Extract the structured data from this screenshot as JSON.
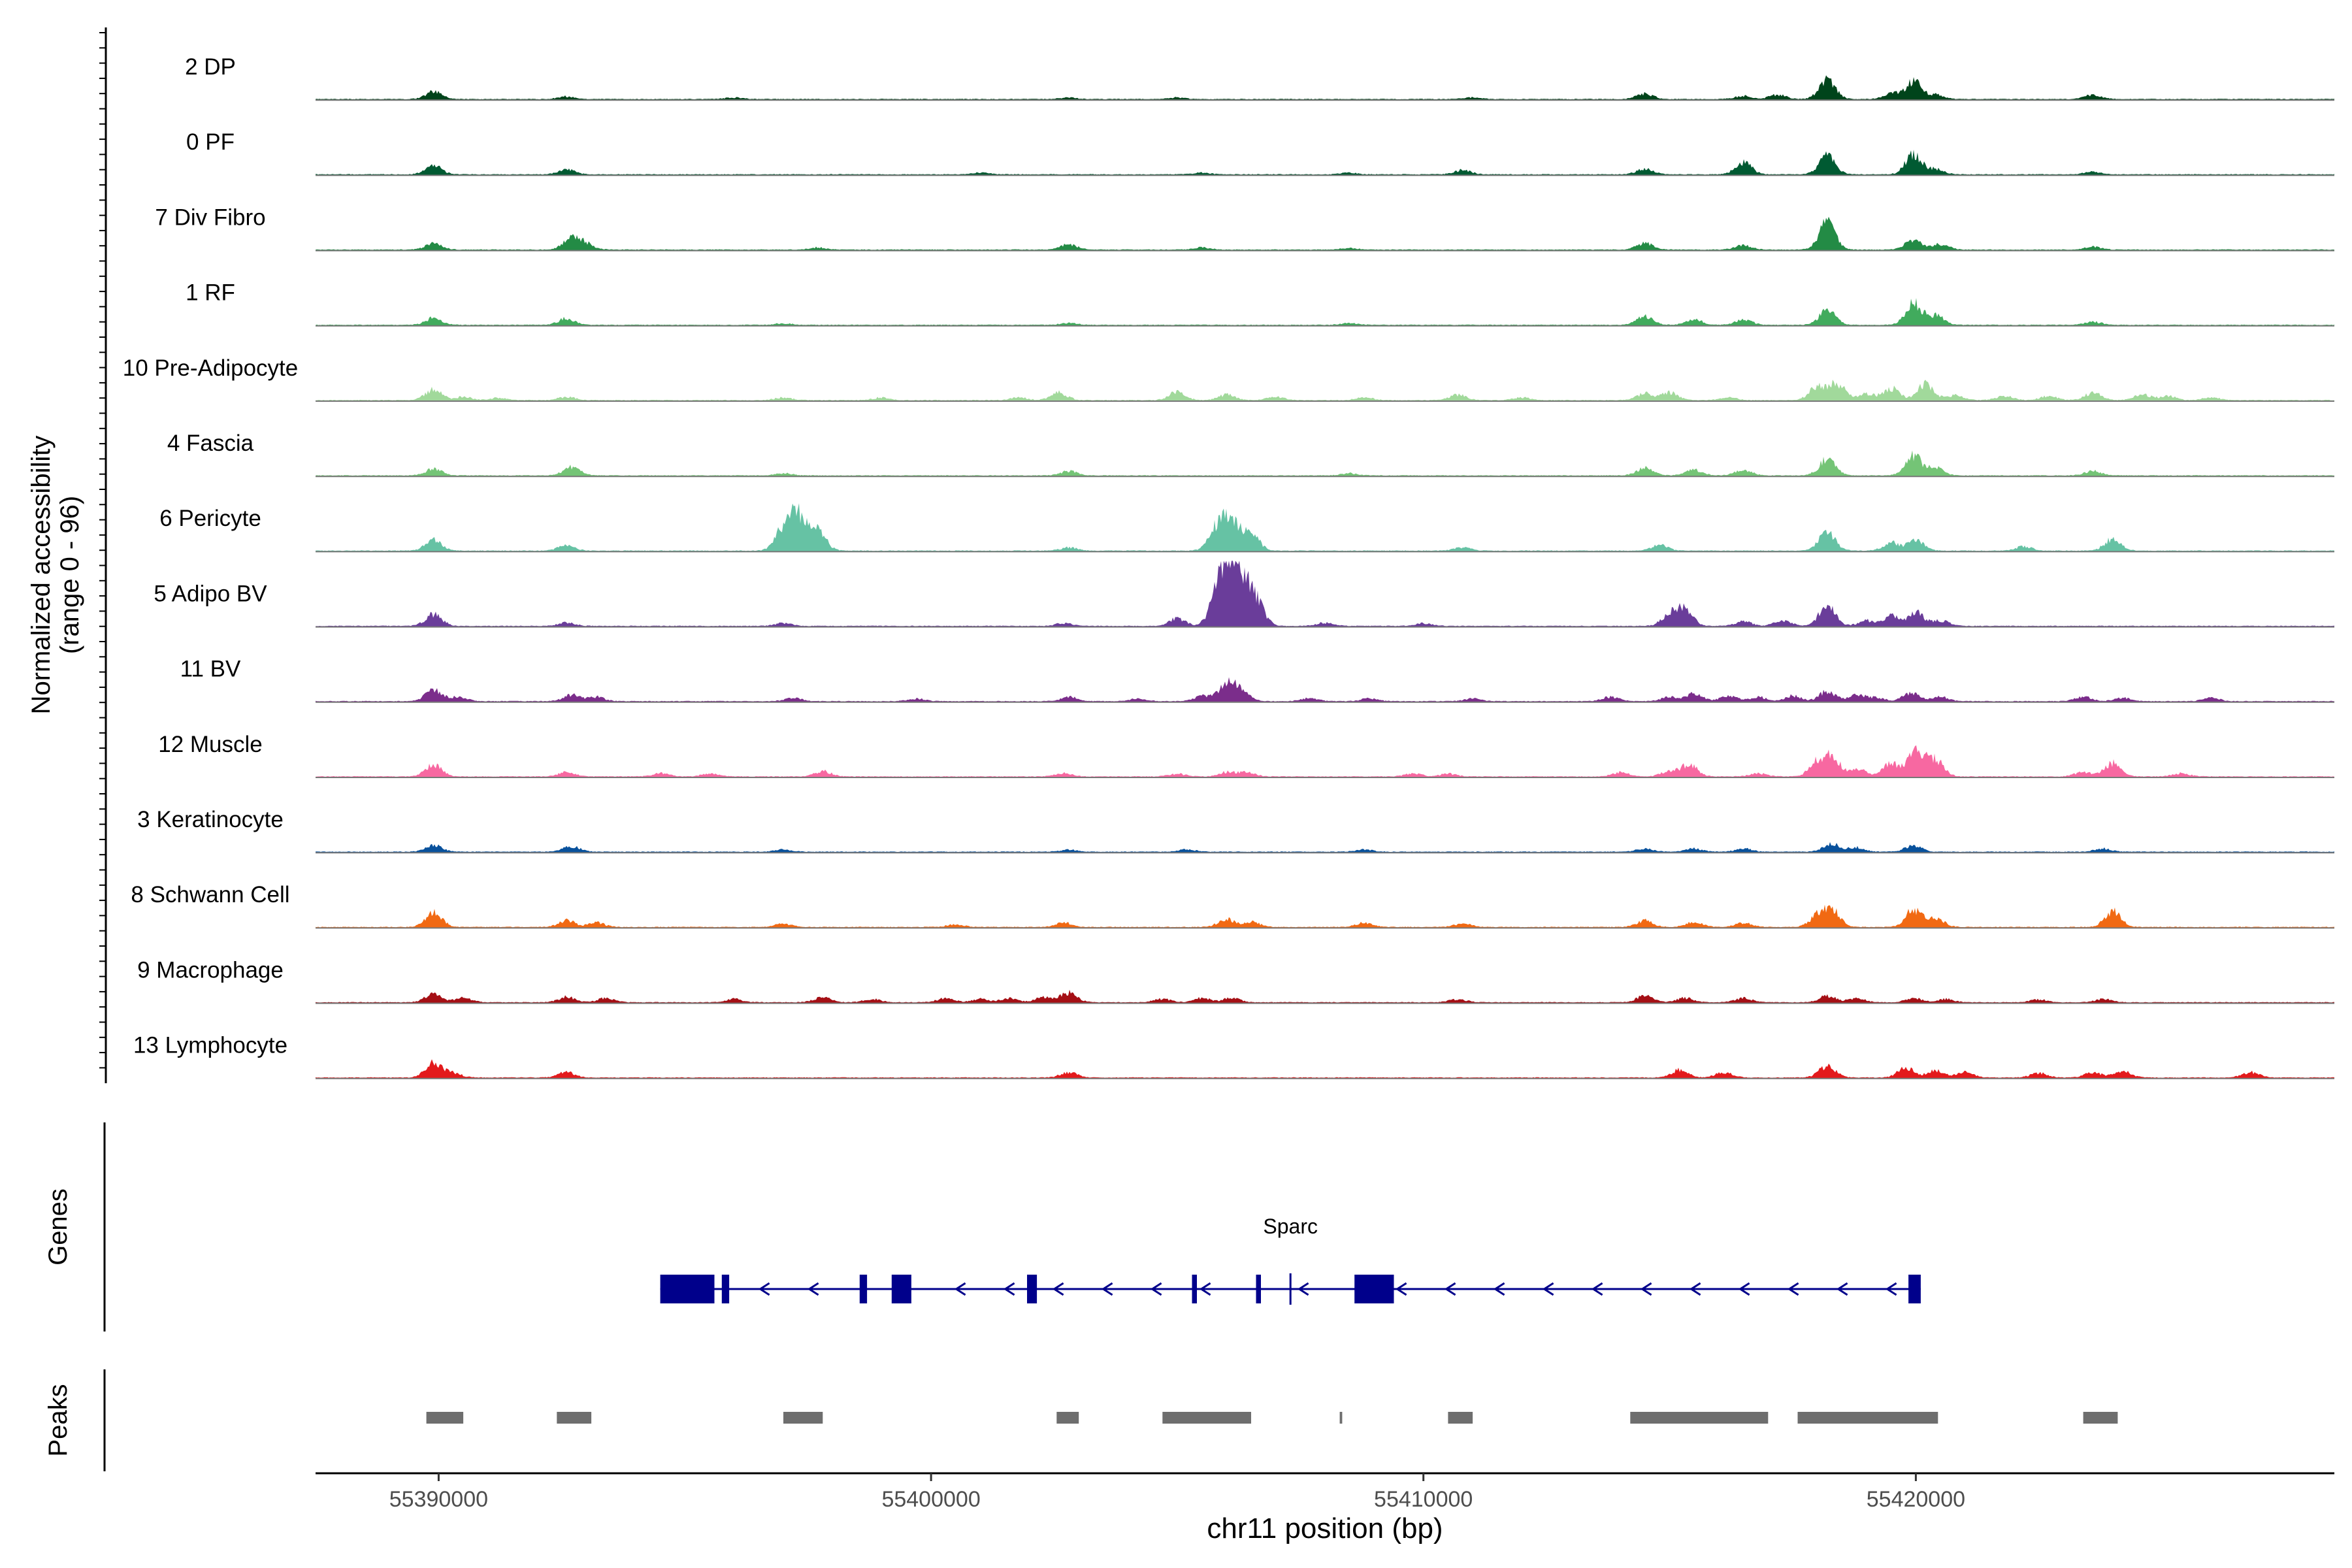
{
  "chart_data": {
    "type": "area",
    "title": "",
    "chromosome": "chr11",
    "xlabel": "chr11 position (bp)",
    "xlim": [
      55387500,
      55428500
    ],
    "x_ticks": [
      55390000,
      55400000,
      55410000,
      55420000
    ],
    "x_tick_labels": [
      "55390000",
      "55400000",
      "55410000",
      "55420000"
    ],
    "ylabel_line1": "Normalized accessibility",
    "ylabel_line2": "(range 0 - 96)",
    "ylim": [
      0,
      96
    ],
    "peak_base": 2,
    "series": [
      {
        "name": "2 DP",
        "color": "#00441b",
        "peaks": [
          [
            55389900,
            14
          ],
          [
            55392600,
            5
          ],
          [
            55396000,
            3
          ],
          [
            55402800,
            3
          ],
          [
            55405000,
            3
          ],
          [
            55411000,
            3
          ],
          [
            55414500,
            10
          ],
          [
            55416500,
            6
          ],
          [
            55417200,
            8
          ],
          [
            55418200,
            35
          ],
          [
            55419500,
            10
          ],
          [
            55419950,
            32
          ],
          [
            55420400,
            8
          ],
          [
            55423600,
            8
          ]
        ]
      },
      {
        "name": "0 PF",
        "color": "#005a32",
        "peaks": [
          [
            55389900,
            16
          ],
          [
            55392600,
            9
          ],
          [
            55401000,
            3
          ],
          [
            55405500,
            3
          ],
          [
            55408500,
            3
          ],
          [
            55410800,
            8
          ],
          [
            55414500,
            10
          ],
          [
            55416500,
            22
          ],
          [
            55418200,
            35
          ],
          [
            55419950,
            36
          ],
          [
            55420400,
            10
          ],
          [
            55423600,
            5
          ]
        ]
      },
      {
        "name": "7 Div Fibro",
        "color": "#238b45",
        "peaks": [
          [
            55389900,
            12
          ],
          [
            55392700,
            22
          ],
          [
            55393000,
            10
          ],
          [
            55397700,
            4
          ],
          [
            55402800,
            10
          ],
          [
            55405500,
            4
          ],
          [
            55408500,
            3
          ],
          [
            55414500,
            12
          ],
          [
            55416500,
            8
          ],
          [
            55418200,
            50
          ],
          [
            55419950,
            18
          ],
          [
            55420500,
            10
          ],
          [
            55423600,
            5
          ]
        ]
      },
      {
        "name": "1 RF",
        "color": "#41ab5d",
        "peaks": [
          [
            55389900,
            13
          ],
          [
            55392600,
            12
          ],
          [
            55397000,
            3
          ],
          [
            55402800,
            4
          ],
          [
            55408500,
            3
          ],
          [
            55414500,
            16
          ],
          [
            55415500,
            10
          ],
          [
            55416500,
            10
          ],
          [
            55418200,
            27
          ],
          [
            55419950,
            40
          ],
          [
            55420400,
            18
          ],
          [
            55423600,
            6
          ]
        ]
      },
      {
        "name": "10 Pre-Adipocyte",
        "color": "#a1d99b",
        "peaks": [
          [
            55389900,
            20
          ],
          [
            55390500,
            6
          ],
          [
            55391200,
            4
          ],
          [
            55392600,
            6
          ],
          [
            55397000,
            5
          ],
          [
            55399000,
            5
          ],
          [
            55401800,
            5
          ],
          [
            55402600,
            14
          ],
          [
            55405000,
            15
          ],
          [
            55406000,
            10
          ],
          [
            55407000,
            6
          ],
          [
            55408800,
            5
          ],
          [
            55410700,
            10
          ],
          [
            55412000,
            5
          ],
          [
            55414500,
            12
          ],
          [
            55415000,
            14
          ],
          [
            55416200,
            5
          ],
          [
            55418000,
            25
          ],
          [
            55418400,
            30
          ],
          [
            55419000,
            12
          ],
          [
            55419500,
            22
          ],
          [
            55420200,
            30
          ],
          [
            55420800,
            10
          ],
          [
            55421800,
            8
          ],
          [
            55422700,
            8
          ],
          [
            55423600,
            14
          ],
          [
            55424600,
            10
          ],
          [
            55425100,
            8
          ],
          [
            55426000,
            5
          ]
        ]
      },
      {
        "name": "4 Fascia",
        "color": "#74c476",
        "peaks": [
          [
            55389900,
            12
          ],
          [
            55392700,
            16
          ],
          [
            55397000,
            4
          ],
          [
            55402800,
            8
          ],
          [
            55408500,
            4
          ],
          [
            55414500,
            14
          ],
          [
            55415500,
            10
          ],
          [
            55416500,
            10
          ],
          [
            55418200,
            30
          ],
          [
            55419950,
            36
          ],
          [
            55420400,
            14
          ],
          [
            55423600,
            8
          ]
        ]
      },
      {
        "name": "6 Pericyte",
        "color": "#66c2a4",
        "peaks": [
          [
            55389900,
            20
          ],
          [
            55392600,
            10
          ],
          [
            55397000,
            40
          ],
          [
            55397300,
            62
          ],
          [
            55397700,
            35
          ],
          [
            55402800,
            6
          ],
          [
            55405800,
            42
          ],
          [
            55406100,
            60
          ],
          [
            55406500,
            30
          ],
          [
            55410800,
            6
          ],
          [
            55414800,
            10
          ],
          [
            55418200,
            36
          ],
          [
            55419500,
            15
          ],
          [
            55420000,
            18
          ],
          [
            55422200,
            8
          ],
          [
            55424000,
            22
          ]
        ]
      },
      {
        "name": "5 Adipo BV",
        "color": "#6a3d9a",
        "peaks": [
          [
            55389900,
            22
          ],
          [
            55392600,
            6
          ],
          [
            55397000,
            5
          ],
          [
            55402700,
            5
          ],
          [
            55405000,
            14
          ],
          [
            55405800,
            40
          ],
          [
            55406000,
            95
          ],
          [
            55406300,
            75
          ],
          [
            55406600,
            45
          ],
          [
            55408000,
            6
          ],
          [
            55410000,
            5
          ],
          [
            55415000,
            20
          ],
          [
            55415300,
            30
          ],
          [
            55416500,
            8
          ],
          [
            55417300,
            10
          ],
          [
            55418200,
            38
          ],
          [
            55419000,
            10
          ],
          [
            55419500,
            18
          ],
          [
            55420000,
            25
          ],
          [
            55420500,
            10
          ]
        ]
      },
      {
        "name": "11 BV",
        "color": "#7b2d8b",
        "peaks": [
          [
            55389900,
            22
          ],
          [
            55390400,
            8
          ],
          [
            55392700,
            12
          ],
          [
            55393200,
            8
          ],
          [
            55397200,
            6
          ],
          [
            55399700,
            5
          ],
          [
            55402800,
            8
          ],
          [
            55404200,
            5
          ],
          [
            55405500,
            10
          ],
          [
            55406000,
            30
          ],
          [
            55406300,
            20
          ],
          [
            55407700,
            6
          ],
          [
            55408900,
            5
          ],
          [
            55411000,
            5
          ],
          [
            55413800,
            8
          ],
          [
            55415000,
            8
          ],
          [
            55415500,
            15
          ],
          [
            55416200,
            10
          ],
          [
            55416800,
            8
          ],
          [
            55417500,
            10
          ],
          [
            55418200,
            18
          ],
          [
            55418800,
            12
          ],
          [
            55419200,
            6
          ],
          [
            55419900,
            15
          ],
          [
            55420500,
            8
          ],
          [
            55423400,
            8
          ],
          [
            55424200,
            6
          ],
          [
            55426000,
            6
          ]
        ]
      },
      {
        "name": "12 Muscle",
        "color": "#f768a1",
        "peaks": [
          [
            55389900,
            22
          ],
          [
            55392600,
            8
          ],
          [
            55394500,
            6
          ],
          [
            55395500,
            5
          ],
          [
            55397800,
            10
          ],
          [
            55402700,
            6
          ],
          [
            55405000,
            5
          ],
          [
            55406000,
            8
          ],
          [
            55406400,
            8
          ],
          [
            55409800,
            6
          ],
          [
            55410500,
            5
          ],
          [
            55414000,
            8
          ],
          [
            55415000,
            10
          ],
          [
            55415400,
            22
          ],
          [
            55416800,
            6
          ],
          [
            55418000,
            25
          ],
          [
            55418300,
            35
          ],
          [
            55418800,
            15
          ],
          [
            55419500,
            25
          ],
          [
            55420000,
            50
          ],
          [
            55420400,
            30
          ],
          [
            55423400,
            8
          ],
          [
            55424000,
            25
          ],
          [
            55425400,
            6
          ]
        ]
      },
      {
        "name": "3 Keratinocyte",
        "color": "#08519c",
        "peaks": [
          [
            55389900,
            12
          ],
          [
            55392700,
            10
          ],
          [
            55397000,
            4
          ],
          [
            55402800,
            4
          ],
          [
            55405200,
            4
          ],
          [
            55408800,
            4
          ],
          [
            55414500,
            6
          ],
          [
            55415500,
            6
          ],
          [
            55416500,
            6
          ],
          [
            55418300,
            16
          ],
          [
            55418800,
            8
          ],
          [
            55419950,
            12
          ],
          [
            55423800,
            6
          ]
        ]
      },
      {
        "name": "8 Schwann Cell",
        "color": "#f16913",
        "peaks": [
          [
            55389900,
            28
          ],
          [
            55392600,
            12
          ],
          [
            55393200,
            8
          ],
          [
            55397000,
            6
          ],
          [
            55400500,
            5
          ],
          [
            55402700,
            8
          ],
          [
            55406000,
            15
          ],
          [
            55406500,
            10
          ],
          [
            55408800,
            8
          ],
          [
            55410800,
            6
          ],
          [
            55414500,
            12
          ],
          [
            55415500,
            10
          ],
          [
            55416500,
            8
          ],
          [
            55418000,
            20
          ],
          [
            55418300,
            30
          ],
          [
            55419950,
            33
          ],
          [
            55420400,
            18
          ],
          [
            55424000,
            30
          ]
        ]
      },
      {
        "name": "9 Macrophage",
        "color": "#a50f15",
        "peaks": [
          [
            55389900,
            16
          ],
          [
            55390500,
            8
          ],
          [
            55392600,
            10
          ],
          [
            55393400,
            8
          ],
          [
            55396000,
            6
          ],
          [
            55397800,
            10
          ],
          [
            55398800,
            6
          ],
          [
            55400300,
            8
          ],
          [
            55401000,
            6
          ],
          [
            55401600,
            8
          ],
          [
            55402300,
            10
          ],
          [
            55402800,
            18
          ],
          [
            55404700,
            6
          ],
          [
            55405500,
            8
          ],
          [
            55406100,
            8
          ],
          [
            55410700,
            6
          ],
          [
            55414500,
            12
          ],
          [
            55415300,
            8
          ],
          [
            55416500,
            8
          ],
          [
            55418200,
            12
          ],
          [
            55418800,
            8
          ],
          [
            55419950,
            8
          ],
          [
            55420600,
            6
          ],
          [
            55422500,
            5
          ],
          [
            55423800,
            6
          ]
        ]
      },
      {
        "name": "13 Lymphocyte",
        "color": "#e31a1c",
        "peaks": [
          [
            55389900,
            28
          ],
          [
            55390300,
            8
          ],
          [
            55392600,
            10
          ],
          [
            55402800,
            10
          ],
          [
            55415200,
            14
          ],
          [
            55416100,
            10
          ],
          [
            55418200,
            22
          ],
          [
            55419800,
            18
          ],
          [
            55420400,
            14
          ],
          [
            55421000,
            10
          ],
          [
            55422500,
            8
          ],
          [
            55423600,
            10
          ],
          [
            55424200,
            12
          ],
          [
            55426800,
            10
          ]
        ]
      }
    ],
    "genes_track_label": "Genes",
    "gene": {
      "name": "Sparc",
      "strand": "-",
      "start": 55394500,
      "end": 55420100,
      "exons": [
        [
          55394500,
          55395600
        ],
        [
          55395750,
          55395900
        ],
        [
          55398550,
          55398700
        ],
        [
          55399200,
          55399600
        ],
        [
          55401950,
          55402150
        ],
        [
          55405300,
          55405400
        ],
        [
          55406600,
          55406700
        ],
        [
          55408600,
          55409400
        ],
        [
          55419850,
          55420100
        ]
      ],
      "marker_positions": [
        55407300
      ]
    },
    "peaks_track_label": "Peaks",
    "peak_regions": [
      [
        55389750,
        55390500
      ],
      [
        55392400,
        55393100
      ],
      [
        55397000,
        55397800
      ],
      [
        55402550,
        55403000
      ],
      [
        55404700,
        55406500
      ],
      [
        55408300,
        55408350
      ],
      [
        55410500,
        55411000
      ],
      [
        55414200,
        55417000
      ],
      [
        55417600,
        55420450
      ],
      [
        55423400,
        55424100
      ]
    ]
  }
}
